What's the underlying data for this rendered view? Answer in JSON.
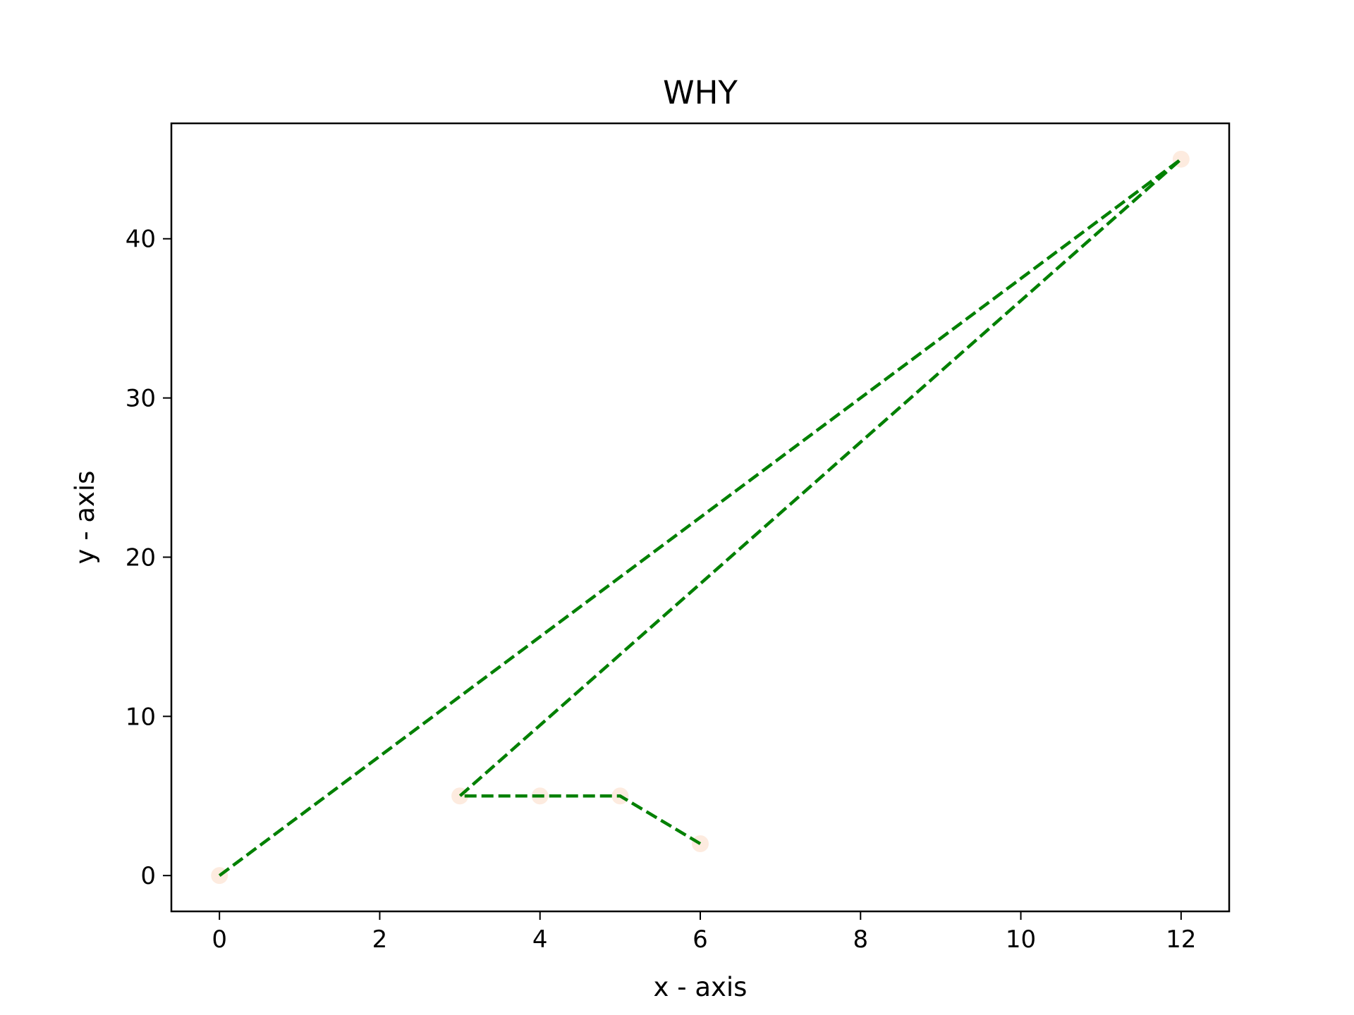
{
  "chart_data": {
    "type": "line",
    "title": "WHY",
    "xlabel": "x - axis",
    "ylabel": "y - axis",
    "x": [
      0,
      12,
      3,
      4,
      5,
      6
    ],
    "series": [
      {
        "values": [
          0,
          45,
          5,
          5,
          5,
          2
        ],
        "color": "#008000",
        "line_style": "dashed",
        "marker": "circle",
        "marker_color": "#fdebdf"
      }
    ],
    "xlim": [
      -0.6,
      12.6
    ],
    "ylim": [
      -2.25,
      47.25
    ],
    "xticks": [
      0,
      2,
      4,
      6,
      8,
      10,
      12
    ],
    "yticks": [
      0,
      10,
      20,
      30,
      40
    ],
    "xtick_labels": [
      "0",
      "2",
      "4",
      "6",
      "8",
      "10",
      "12"
    ],
    "ytick_labels": [
      "0",
      "10",
      "20",
      "30",
      "40"
    ],
    "grid": false,
    "legend": "none"
  }
}
